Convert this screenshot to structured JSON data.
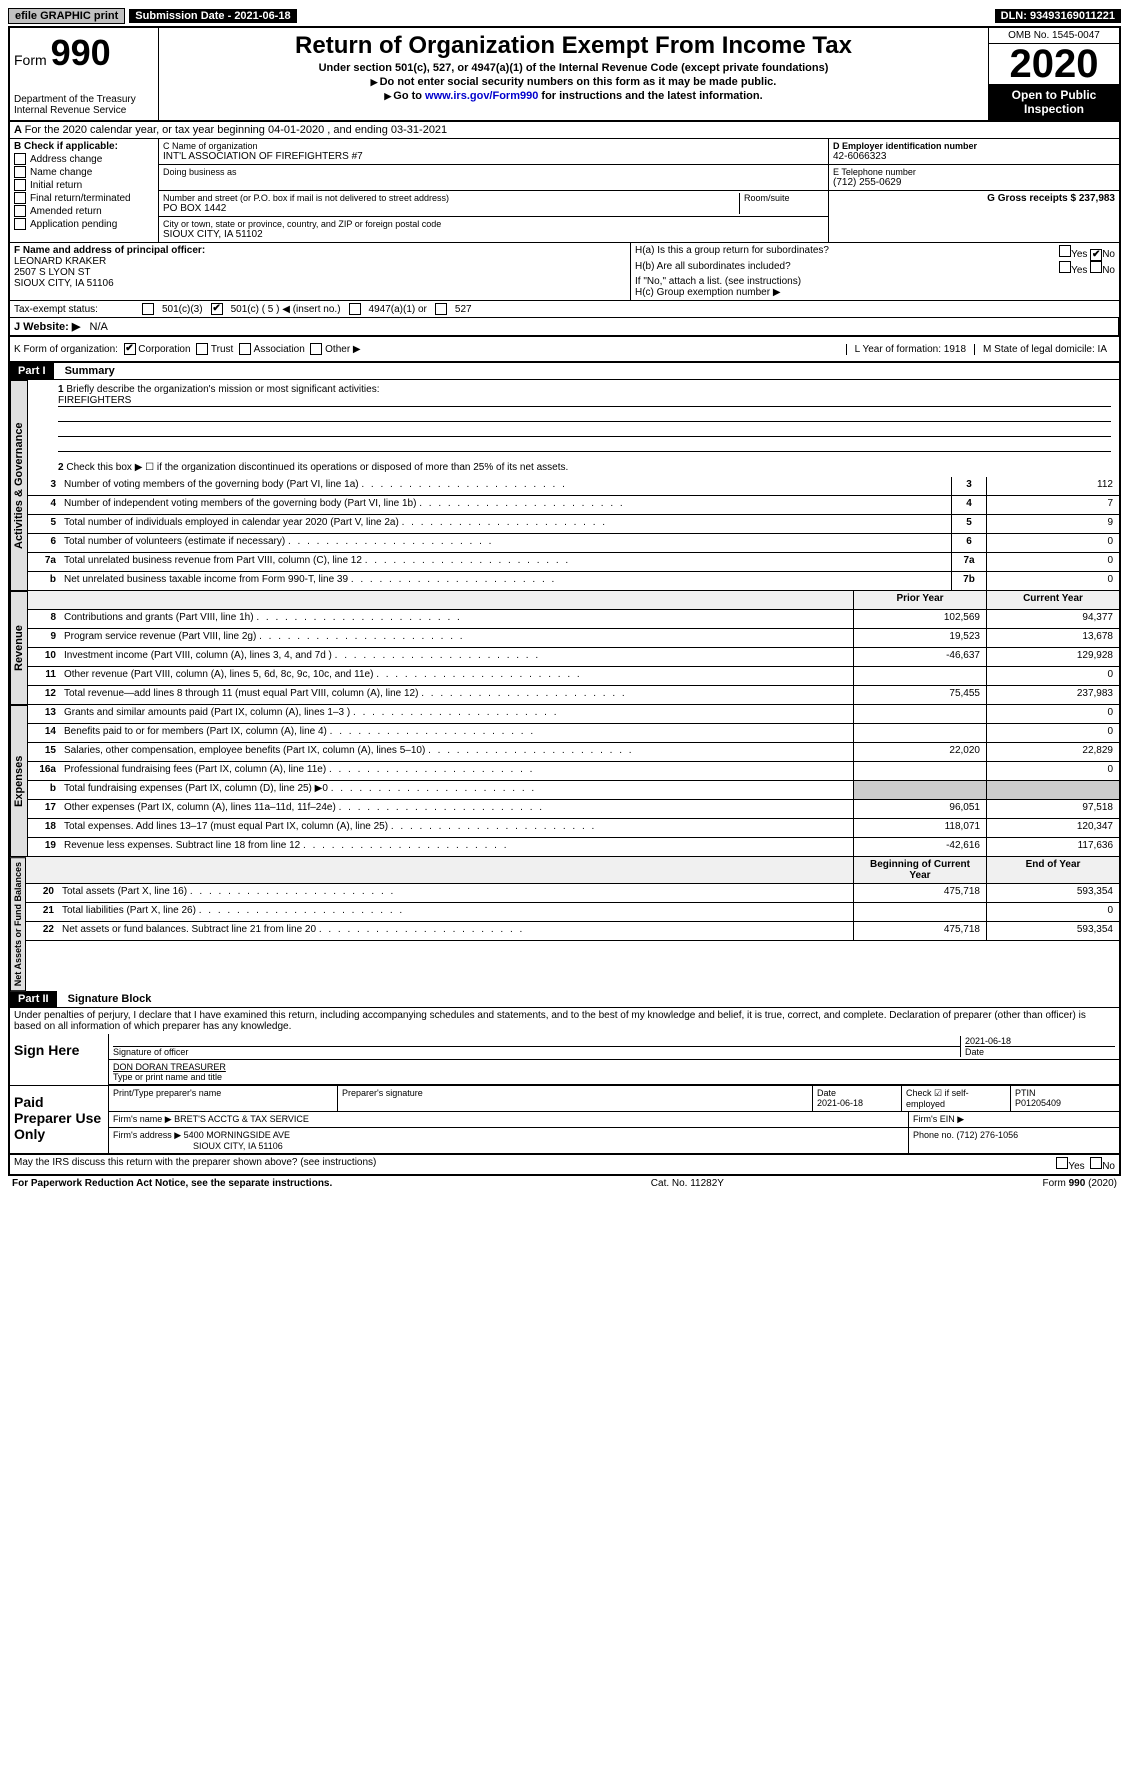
{
  "topbar": {
    "efile": "efile GRAPHIC print",
    "submission_label": "Submission Date - 2021-06-18",
    "dln": "DLN: 93493169011221"
  },
  "header": {
    "form_prefix": "Form",
    "form_no": "990",
    "dept1": "Department of the Treasury",
    "dept2": "Internal Revenue Service",
    "title": "Return of Organization Exempt From Income Tax",
    "sub1": "Under section 501(c), 527, or 4947(a)(1) of the Internal Revenue Code (except private foundations)",
    "sub2": "Do not enter social security numbers on this form as it may be made public.",
    "sub3_pre": "Go to ",
    "sub3_link": "www.irs.gov/Form990",
    "sub3_post": " for instructions and the latest information.",
    "omb": "OMB No. 1545-0047",
    "year": "2020",
    "open": "Open to Public Inspection"
  },
  "rowA": "For the 2020 calendar year, or tax year beginning 04-01-2020    , and ending 03-31-2021",
  "colB": {
    "header": "B Check if applicable:",
    "items": [
      "Address change",
      "Name change",
      "Initial return",
      "Final return/terminated",
      "Amended return",
      "Application pending"
    ]
  },
  "colC": {
    "name_label": "C Name of organization",
    "name": "INT'L ASSOCIATION OF FIREFIGHTERS #7",
    "dba_label": "Doing business as",
    "addr_label": "Number and street (or P.O. box if mail is not delivered to street address)",
    "room_label": "Room/suite",
    "addr": "PO BOX 1442",
    "city_label": "City or town, state or province, country, and ZIP or foreign postal code",
    "city": "SIOUX CITY, IA  51102"
  },
  "colD": {
    "ein_label": "D Employer identification number",
    "ein": "42-6066323",
    "phone_label": "E Telephone number",
    "phone": "(712) 255-0629",
    "gross_label": "G Gross receipts $ 237,983"
  },
  "fBlock": {
    "label": "F Name and address of principal officer:",
    "name": "LEONARD KRAKER",
    "addr1": "2507 S LYON ST",
    "addr2": "SIOUX CITY, IA  51106"
  },
  "hBlock": {
    "ha": "H(a)  Is this a group return for subordinates?",
    "hb": "H(b)  Are all subordinates included?",
    "hb_note": "If \"No,\" attach a list. (see instructions)",
    "hc": "H(c)  Group exemption number ▶",
    "yes": "Yes",
    "no": "No"
  },
  "iRow": {
    "label": "Tax-exempt status:",
    "c3": "501(c)(3)",
    "c": "501(c) ( 5 ) ◀ (insert no.)",
    "a1": "4947(a)(1) or",
    "s527": "527"
  },
  "jRow": {
    "label": "J Website: ▶",
    "val": "N/A"
  },
  "kRow": {
    "label": "K Form of organization:",
    "corp": "Corporation",
    "trust": "Trust",
    "assoc": "Association",
    "other": "Other ▶",
    "year_label": "L Year of formation: 1918",
    "state_label": "M State of legal domicile: IA"
  },
  "part1": {
    "header": "Part I",
    "title": "Summary",
    "mission_label": "Briefly describe the organization's mission or most significant activities:",
    "mission": "FIREFIGHTERS",
    "line2": "Check this box ▶ ☐  if the organization discontinued its operations or disposed of more than 25% of its net assets.",
    "tabs": {
      "gov": "Activities & Governance",
      "rev": "Revenue",
      "exp": "Expenses",
      "net": "Net Assets or Fund Balances"
    },
    "col_prior": "Prior Year",
    "col_current": "Current Year",
    "col_begin": "Beginning of Current Year",
    "col_end": "End of Year",
    "lines_gov": [
      {
        "n": "3",
        "t": "Number of voting members of the governing body (Part VI, line 1a)",
        "box": "3",
        "v": "112"
      },
      {
        "n": "4",
        "t": "Number of independent voting members of the governing body (Part VI, line 1b)",
        "box": "4",
        "v": "7"
      },
      {
        "n": "5",
        "t": "Total number of individuals employed in calendar year 2020 (Part V, line 2a)",
        "box": "5",
        "v": "9"
      },
      {
        "n": "6",
        "t": "Total number of volunteers (estimate if necessary)",
        "box": "6",
        "v": "0"
      },
      {
        "n": "7a",
        "t": "Total unrelated business revenue from Part VIII, column (C), line 12",
        "box": "7a",
        "v": "0"
      },
      {
        "n": "b",
        "t": "Net unrelated business taxable income from Form 990-T, line 39",
        "box": "7b",
        "v": "0"
      }
    ],
    "lines_rev": [
      {
        "n": "8",
        "t": "Contributions and grants (Part VIII, line 1h)",
        "p": "102,569",
        "c": "94,377"
      },
      {
        "n": "9",
        "t": "Program service revenue (Part VIII, line 2g)",
        "p": "19,523",
        "c": "13,678"
      },
      {
        "n": "10",
        "t": "Investment income (Part VIII, column (A), lines 3, 4, and 7d )",
        "p": "-46,637",
        "c": "129,928"
      },
      {
        "n": "11",
        "t": "Other revenue (Part VIII, column (A), lines 5, 6d, 8c, 9c, 10c, and 11e)",
        "p": "",
        "c": "0"
      },
      {
        "n": "12",
        "t": "Total revenue—add lines 8 through 11 (must equal Part VIII, column (A), line 12)",
        "p": "75,455",
        "c": "237,983"
      }
    ],
    "lines_exp": [
      {
        "n": "13",
        "t": "Grants and similar amounts paid (Part IX, column (A), lines 1–3 )",
        "p": "",
        "c": "0"
      },
      {
        "n": "14",
        "t": "Benefits paid to or for members (Part IX, column (A), line 4)",
        "p": "",
        "c": "0"
      },
      {
        "n": "15",
        "t": "Salaries, other compensation, employee benefits (Part IX, column (A), lines 5–10)",
        "p": "22,020",
        "c": "22,829"
      },
      {
        "n": "16a",
        "t": "Professional fundraising fees (Part IX, column (A), line 11e)",
        "p": "",
        "c": "0"
      },
      {
        "n": "b",
        "t": "Total fundraising expenses (Part IX, column (D), line 25) ▶0",
        "p": null,
        "c": null
      },
      {
        "n": "17",
        "t": "Other expenses (Part IX, column (A), lines 11a–11d, 11f–24e)",
        "p": "96,051",
        "c": "97,518"
      },
      {
        "n": "18",
        "t": "Total expenses. Add lines 13–17 (must equal Part IX, column (A), line 25)",
        "p": "118,071",
        "c": "120,347"
      },
      {
        "n": "19",
        "t": "Revenue less expenses. Subtract line 18 from line 12",
        "p": "-42,616",
        "c": "117,636"
      }
    ],
    "lines_net": [
      {
        "n": "20",
        "t": "Total assets (Part X, line 16)",
        "p": "475,718",
        "c": "593,354"
      },
      {
        "n": "21",
        "t": "Total liabilities (Part X, line 26)",
        "p": "",
        "c": "0"
      },
      {
        "n": "22",
        "t": "Net assets or fund balances. Subtract line 21 from line 20",
        "p": "475,718",
        "c": "593,354"
      }
    ]
  },
  "part2": {
    "header": "Part II",
    "title": "Signature Block",
    "perjury": "Under penalties of perjury, I declare that I have examined this return, including accompanying schedules and statements, and to the best of my knowledge and belief, it is true, correct, and complete. Declaration of preparer (other than officer) is based on all information of which preparer has any knowledge."
  },
  "sign": {
    "label": "Sign Here",
    "sig_label": "Signature of officer",
    "date": "2021-06-18",
    "date_label": "Date",
    "name": "DON DORAN  TREASURER",
    "name_label": "Type or print name and title"
  },
  "prep": {
    "label": "Paid Preparer Use Only",
    "c1": "Print/Type preparer's name",
    "c2": "Preparer's signature",
    "c3": "Date",
    "c3v": "2021-06-18",
    "c4": "Check ☑ if self-employed",
    "c5": "PTIN",
    "c5v": "P01205409",
    "firm_label": "Firm's name    ▶",
    "firm": "BRET'S ACCTG & TAX SERVICE",
    "ein_label": "Firm's EIN ▶",
    "addr_label": "Firm's address ▶",
    "addr1": "5400 MORNINGSIDE AVE",
    "addr2": "SIOUX CITY, IA  51106",
    "phone_label": "Phone no. (712) 276-1056"
  },
  "footer": {
    "discuss": "May the IRS discuss this return with the preparer shown above? (see instructions)",
    "yes": "Yes",
    "no": "No",
    "paperwork": "For Paperwork Reduction Act Notice, see the separate instructions.",
    "cat": "Cat. No. 11282Y",
    "form": "Form 990 (2020)"
  }
}
